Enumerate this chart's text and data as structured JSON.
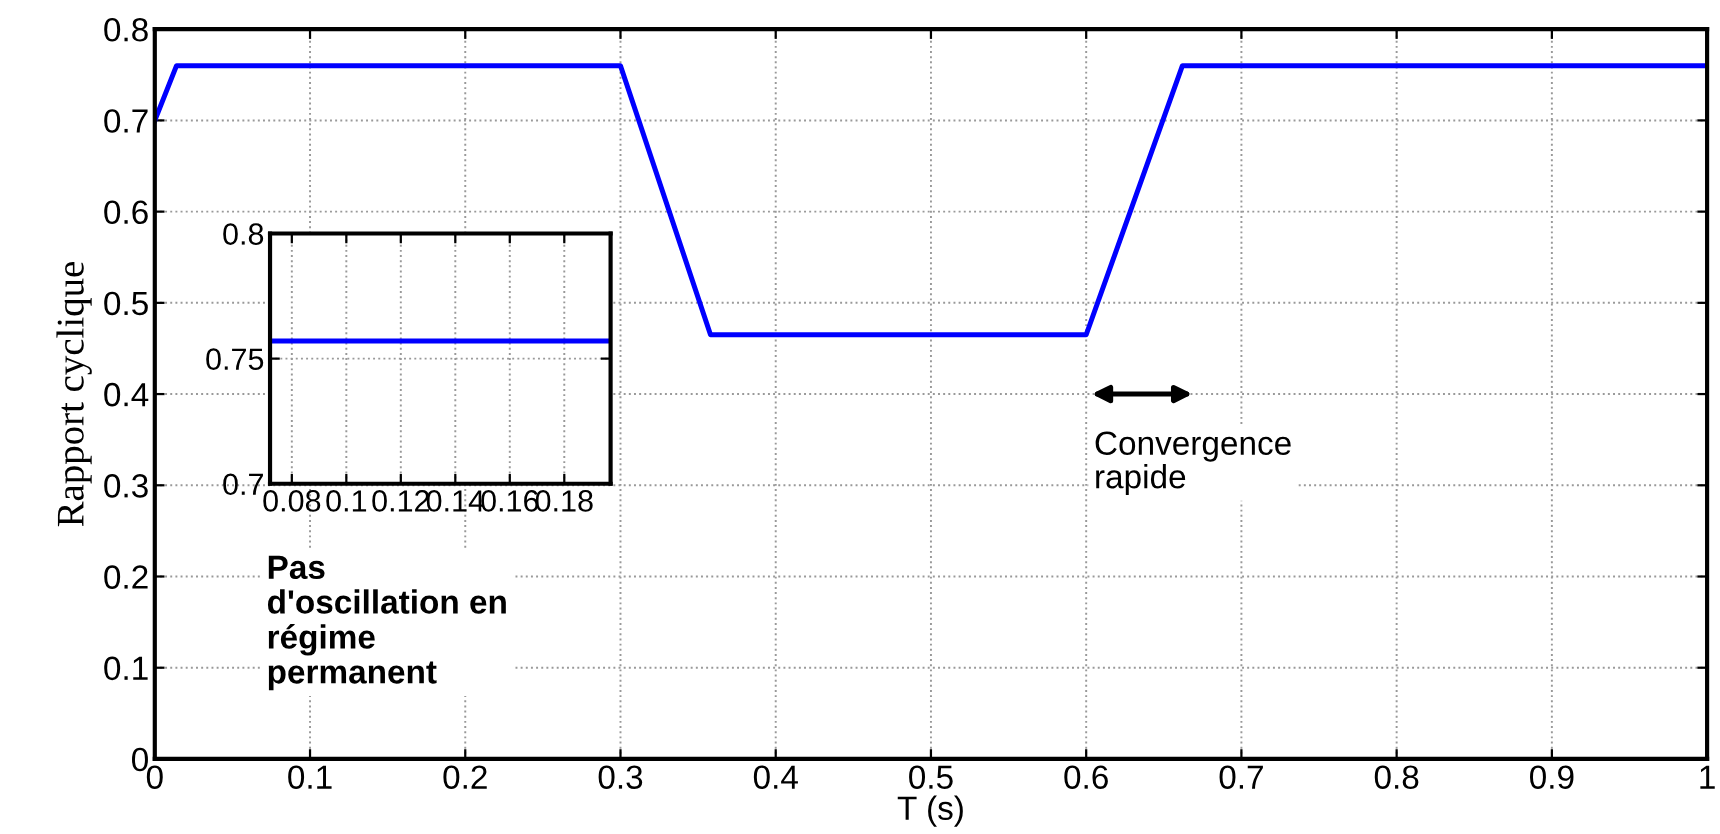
{
  "chart_data": [
    {
      "type": "line",
      "xlabel": "T (s)",
      "ylabel": "Rapport cyclique",
      "x": [
        0,
        0.014,
        0.3,
        0.358,
        0.6,
        0.662,
        1
      ],
      "series": [
        {
          "color": "#0000ff",
          "values": [
            0.7,
            0.76,
            0.76,
            0.465,
            0.465,
            0.76,
            0.76
          ]
        }
      ],
      "xlim": [
        0,
        1
      ],
      "ylim": [
        0,
        0.8
      ],
      "xticks": [
        0,
        0.1,
        0.2,
        0.3,
        0.4,
        0.5,
        0.6,
        0.7,
        0.8,
        0.9,
        1
      ],
      "yticks": [
        0,
        0.1,
        0.2,
        0.3,
        0.4,
        0.5,
        0.6,
        0.7,
        0.8
      ],
      "grid": true,
      "annotations": [
        "Convergence\nrapide",
        "Pas\nd'oscillation en\nrégime\npermanent"
      ]
    },
    {
      "type": "line",
      "x": [
        0.072,
        0.197
      ],
      "series": [
        {
          "color": "#0000ff",
          "values": [
            0.757,
            0.757
          ]
        }
      ],
      "xlim": [
        0.072,
        0.197
      ],
      "ylim": [
        0.7,
        0.8
      ],
      "xticks": [
        0.08,
        0.1,
        0.12,
        0.14,
        0.16,
        0.18
      ],
      "yticks": [
        0.7,
        0.75,
        0.8
      ],
      "grid": true
    }
  ]
}
